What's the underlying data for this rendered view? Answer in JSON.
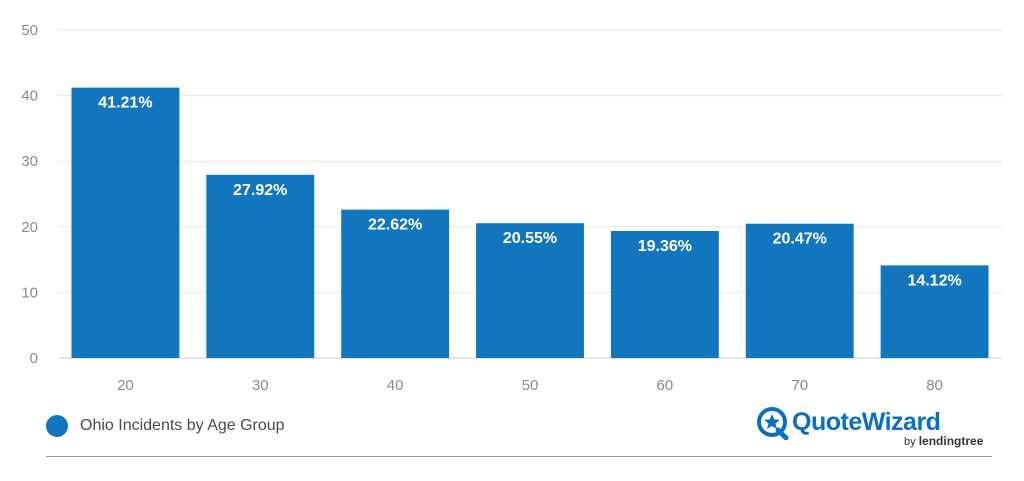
{
  "chart_data": {
    "type": "bar",
    "categories": [
      "20",
      "30",
      "40",
      "50",
      "60",
      "70",
      "80"
    ],
    "series": [
      {
        "name": "Ohio Incidents by Age Group",
        "values": [
          41.21,
          27.92,
          22.62,
          20.55,
          19.36,
          20.47,
          14.12
        ],
        "labels": [
          "41.21%",
          "27.92%",
          "22.62%",
          "20.55%",
          "19.36%",
          "20.47%",
          "14.12%"
        ]
      }
    ],
    "yticks": [
      "0",
      "10",
      "20",
      "30",
      "40",
      "50"
    ],
    "ylim": [
      0,
      50
    ],
    "grid": true,
    "legend_position": "bottom-left",
    "bar_color": "#1276bf"
  },
  "brand": {
    "name": "QuoteWizard",
    "by": "by",
    "parent": "lendingtree",
    "icon": "wizard-star-icon",
    "color": "#0b6fbf",
    "leaf_color": "#6cc04a"
  }
}
